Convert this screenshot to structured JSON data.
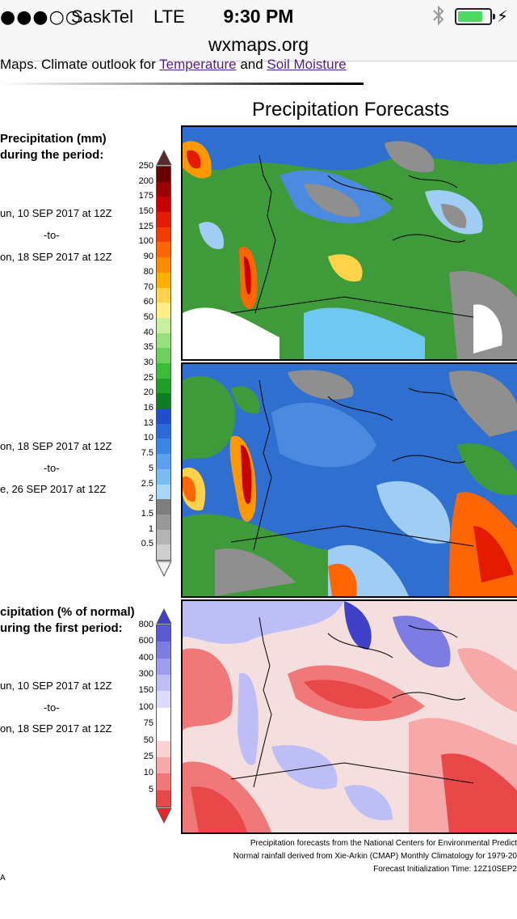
{
  "status_bar": {
    "signal": "●●●○○",
    "carrier": "SaskTel",
    "network": "LTE",
    "time": "9:30 PM",
    "battery_level": 0.8,
    "battery_color": "#4cd964"
  },
  "browser": {
    "url": "wxmaps.org"
  },
  "header": {
    "prefix": "Maps. Climate outlook for ",
    "link_temperature": "Temperature",
    "conjunction": " and ",
    "link_soil": "Soil Moisture"
  },
  "page_title": "Precipitation Forecasts",
  "panels": {
    "accum": {
      "heading_line1": "Precipitation (mm)",
      "heading_line2": "during the period:",
      "period1_start": "un, 10 SEP 2017 at 12Z",
      "period1_to": "-to-",
      "period1_end": "on, 18 SEP 2017 at 12Z",
      "period2_start": "on, 18 SEP 2017 at 12Z",
      "period2_to": "-to-",
      "period2_end": "e, 26 SEP 2017 at 12Z",
      "scale_labels": [
        "250",
        "200",
        "175",
        "150",
        "125",
        "100",
        "90",
        "80",
        "70",
        "60",
        "50",
        "40",
        "35",
        "30",
        "25",
        "20",
        "16",
        "13",
        "10",
        "7.5",
        "5",
        "2.5",
        "2",
        "1.5",
        "1",
        "0.5"
      ],
      "scale_colors": [
        "#6b0000",
        "#9c0000",
        "#c80000",
        "#e41b00",
        "#f43c00",
        "#ff6500",
        "#ff8c00",
        "#ffb000",
        "#ffd24a",
        "#ffee88",
        "#c8f0a0",
        "#96e27a",
        "#6ad25a",
        "#3cbc3a",
        "#1f9e28",
        "#0f7d1f",
        "#1f4fc8",
        "#2a6ad8",
        "#3a86e2",
        "#5aa2ee",
        "#7cbcf4",
        "#a8d8f8",
        "#7e7e7e",
        "#999999",
        "#b4b4b4",
        "#cfcfcf"
      ],
      "scale_top_color": "#5a2a2a",
      "scale_bottom_color": "#f0f0f0"
    },
    "percent": {
      "heading_line1": "cipitation (% of normal)",
      "heading_line2": "uring the first period:",
      "period_start": "un, 10 SEP 2017 at 12Z",
      "period_to": "-to-",
      "period_end": "on, 18 SEP 2017 at 12Z",
      "scale_labels": [
        "800",
        "600",
        "400",
        "300",
        "150",
        "100",
        "75",
        "50",
        "25",
        "10",
        "5"
      ],
      "scale_colors": [
        "#5a5ad2",
        "#7c7ce2",
        "#9e9eee",
        "#bebef6",
        "#dadafa",
        "#ffffff",
        "#ffffff",
        "#fbd2d2",
        "#f7a8a8",
        "#f07878",
        "#e84848"
      ],
      "scale_top_color": "#4040c8",
      "scale_bottom_color": "#e82828"
    }
  },
  "credits": {
    "line1": "Precipitation forecasts from the National Centers for Environmental Predict",
    "line2": "Normal rainfall derived from Xie-Arkin (CMAP) Monthly Climatology for 1979-20",
    "line3": "Forecast Initialization Time: 12Z10SEP2",
    "source_initial": "A"
  }
}
